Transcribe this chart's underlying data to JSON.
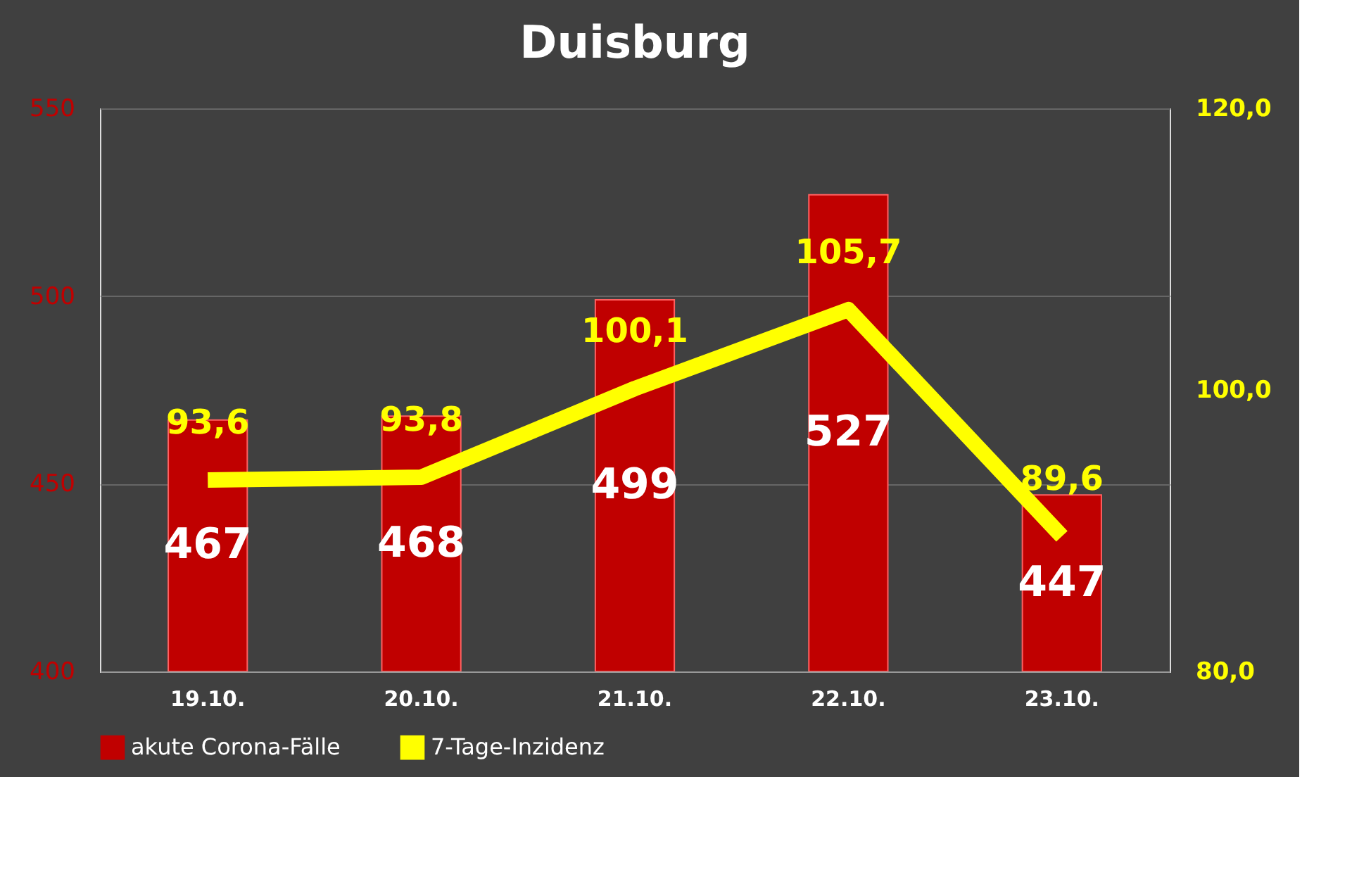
{
  "chart_data": {
    "type": "bar",
    "title": "Duisburg",
    "categories": [
      "19.10.",
      "20.10.",
      "21.10.",
      "22.10.",
      "23.10."
    ],
    "series": [
      {
        "name": "akute Corona-Fälle",
        "color": "#c00000",
        "values": [
          467,
          468,
          499,
          527,
          447
        ]
      },
      {
        "name": "7-Tage-Inzidenz",
        "type": "line",
        "axis": "y2",
        "color": "#ffff00",
        "values": [
          93.6,
          93.8,
          100.1,
          105.7,
          89.6
        ],
        "value_labels": [
          "93,6",
          "93,8",
          "100,1",
          "105,7",
          "89,6"
        ]
      }
    ],
    "ylim": [
      400,
      550
    ],
    "yticks": [
      400,
      450,
      500,
      550
    ],
    "y2lim": [
      80,
      120
    ],
    "y2ticks": [
      {
        "value": 80,
        "label": "80,0"
      },
      {
        "value": 100,
        "label": "100,0"
      },
      {
        "value": 120,
        "label": "120,0"
      }
    ],
    "data_labels": true,
    "grid": "y",
    "legend": "bottom",
    "marker": "none",
    "line_style": "solid"
  }
}
